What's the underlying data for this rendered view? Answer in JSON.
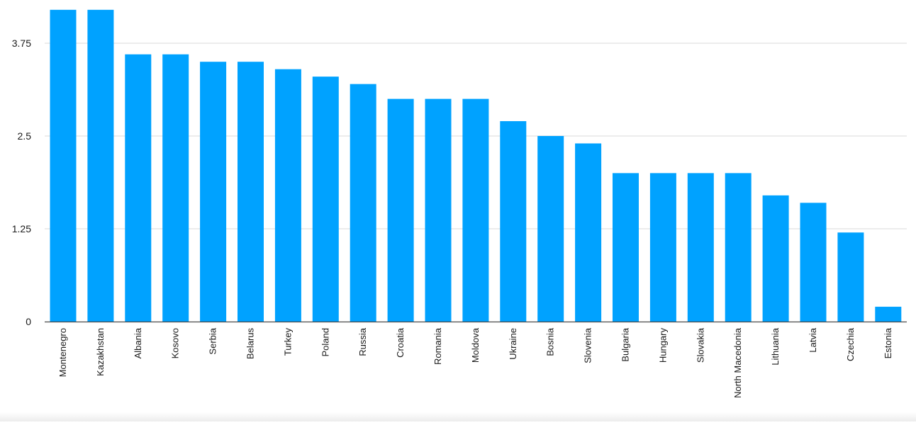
{
  "chart_data": {
    "type": "bar",
    "title": "",
    "xlabel": "",
    "ylabel": "",
    "categories": [
      "Montenegro",
      "Kazakhstan",
      "Albania",
      "Kosovo",
      "Serbia",
      "Belarus",
      "Turkey",
      "Poland",
      "Russia",
      "Croatia",
      "Romania",
      "Moldova",
      "Ukraine",
      "Bosnia",
      "Slovenia",
      "Bulgaria",
      "Hungary",
      "Slovakia",
      "North Macedonia",
      "Lithuania",
      "Latvia",
      "Czechia",
      "Estonia"
    ],
    "values": [
      4.2,
      4.2,
      3.6,
      3.6,
      3.5,
      3.5,
      3.4,
      3.3,
      3.2,
      3.0,
      3.0,
      3.0,
      2.7,
      2.5,
      2.4,
      2.0,
      2.0,
      2.0,
      2.0,
      1.7,
      1.6,
      1.2,
      0.2
    ],
    "ylim": [
      0,
      4.2
    ],
    "yticks": [
      0,
      1.25,
      2.5,
      3.75
    ],
    "ytick_labels": [
      "0",
      "1.25",
      "2.5",
      "3.75"
    ],
    "grid": true,
    "bar_color": "#00a2ff"
  }
}
